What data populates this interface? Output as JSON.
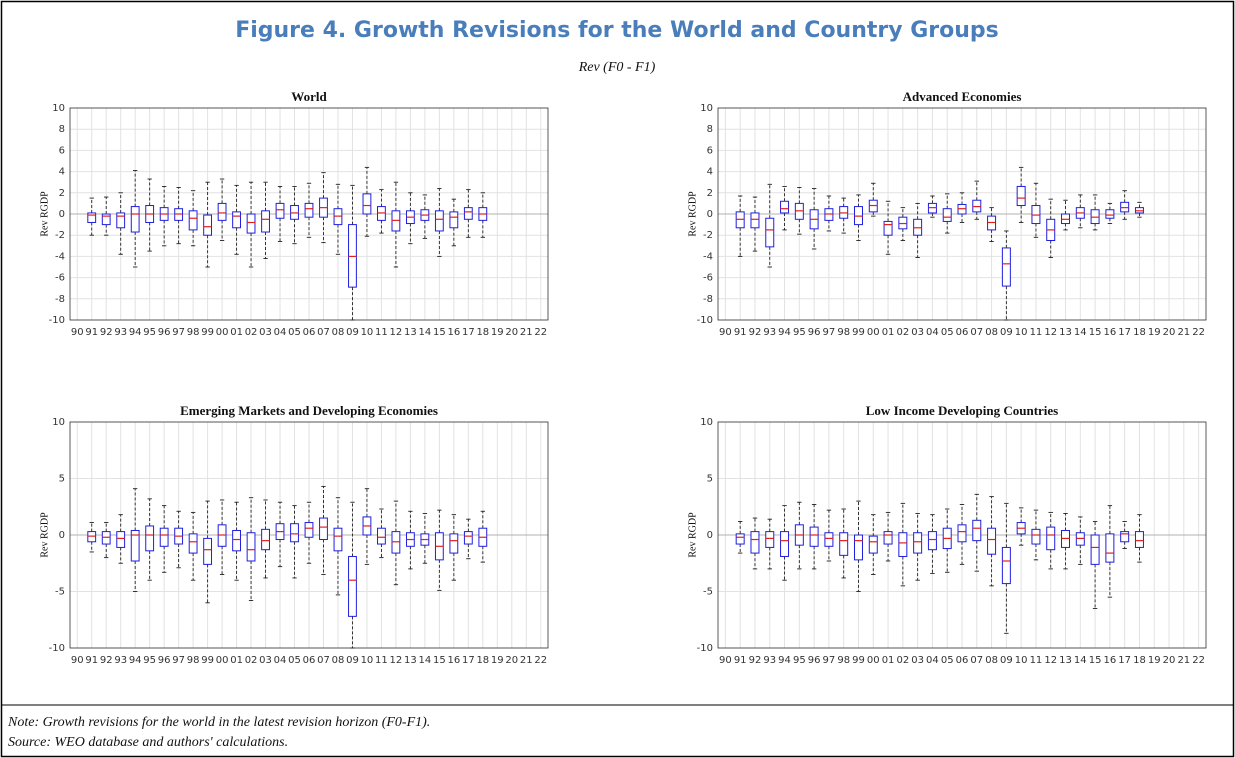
{
  "title": "Figure 4. Growth Revisions for the World and Country Groups",
  "annotation": "Rev (F0 - F1)",
  "note": "Note: Growth revisions for the world in the latest revision horizon (F0-F1).",
  "source": "Source: WEO database and authors' calculations.",
  "chart_data": [
    {
      "type": "box",
      "title": "World",
      "ylabel": "Rev RGDP",
      "categories": [
        "90",
        "91",
        "92",
        "93",
        "94",
        "95",
        "96",
        "97",
        "98",
        "99",
        "00",
        "01",
        "02",
        "03",
        "04",
        "05",
        "06",
        "07",
        "08",
        "09",
        "10",
        "11",
        "12",
        "13",
        "14",
        "15",
        "16",
        "17",
        "18",
        "19",
        "20",
        "21",
        "22"
      ],
      "min": [
        null,
        -2,
        -2,
        -3.8,
        -5,
        -3.5,
        -3,
        -2.8,
        -3,
        -5,
        -2.5,
        -3.8,
        -5,
        -4.2,
        -2.6,
        -2.8,
        -2.2,
        -2.7,
        -3.8,
        -10,
        -2.1,
        -1.8,
        -5,
        -2.8,
        -2.3,
        -4,
        -3,
        -2.2,
        -2.2,
        null,
        null,
        null,
        null
      ],
      "q1": [
        null,
        -0.8,
        -1,
        -1.3,
        -1.7,
        -0.8,
        -0.6,
        -0.6,
        -1.5,
        -2,
        -0.6,
        -1.3,
        -1.8,
        -1.7,
        -0.4,
        -0.5,
        -0.3,
        -0.3,
        -1,
        -6.9,
        0,
        -0.6,
        -1.6,
        -0.9,
        -0.6,
        -1.6,
        -1.3,
        -0.5,
        -0.6,
        null,
        null,
        null,
        null
      ],
      "median": [
        null,
        -0.1,
        -0.2,
        -0.2,
        0,
        0,
        0,
        0,
        -0.4,
        -1.2,
        0.1,
        -0.2,
        -0.8,
        -0.5,
        0.4,
        0.1,
        0.5,
        0.6,
        -0.2,
        -4,
        0.8,
        0.1,
        -0.6,
        -0.3,
        -0.1,
        -0.5,
        -0.3,
        0.2,
        0,
        null,
        null,
        null,
        null
      ],
      "q3": [
        null,
        0.1,
        0,
        0.1,
        0.7,
        0.8,
        0.6,
        0.5,
        0.3,
        -0.1,
        1,
        0.2,
        0,
        0.3,
        1,
        0.8,
        1,
        1.5,
        0.5,
        -1,
        1.9,
        0.7,
        0.3,
        0.3,
        0.4,
        0.3,
        0.2,
        0.6,
        0.6,
        null,
        null,
        null,
        null
      ],
      "max": [
        null,
        1.5,
        1.6,
        2,
        4.1,
        3.3,
        2.6,
        2.5,
        2.2,
        3,
        3.3,
        2.7,
        3,
        3,
        2.6,
        2.6,
        2.9,
        3.9,
        2.8,
        2.7,
        4.4,
        2.3,
        3,
        2,
        1.8,
        2.4,
        1.4,
        2.3,
        2,
        null,
        null,
        null,
        null
      ],
      "ylim": [
        -10,
        10
      ],
      "yticks": [
        -10,
        -8,
        -6,
        -4,
        -2,
        0,
        2,
        4,
        6,
        8,
        10
      ],
      "grid": true,
      "box_color": "#1f1fe0",
      "median_color": "#e0201f"
    },
    {
      "type": "box",
      "title": "Advanced Economies",
      "ylabel": "Rev RGDP",
      "categories": [
        "90",
        "91",
        "92",
        "93",
        "94",
        "95",
        "96",
        "97",
        "98",
        "99",
        "00",
        "01",
        "02",
        "03",
        "04",
        "05",
        "06",
        "07",
        "08",
        "09",
        "10",
        "11",
        "12",
        "13",
        "14",
        "15",
        "16",
        "17",
        "18",
        "19",
        "20",
        "21",
        "22"
      ],
      "min": [
        null,
        -4,
        -3.5,
        -5,
        -1.5,
        -1.9,
        -3.3,
        -1.6,
        -1.8,
        -2.5,
        -0.2,
        -3.8,
        -2.5,
        -4.1,
        -0.3,
        -1.8,
        -0.8,
        -0.5,
        -2.6,
        -10,
        -0.8,
        -2.2,
        -4.1,
        -1.5,
        -1.3,
        -1.5,
        -0.9,
        -0.5,
        -0.3,
        null,
        null,
        null,
        null
      ],
      "q1": [
        null,
        -1.3,
        -1.3,
        -3.1,
        0.1,
        -0.5,
        -1.4,
        -0.6,
        -0.4,
        -1,
        0.2,
        -2,
        -1.4,
        -2,
        0.1,
        -0.7,
        0,
        0.2,
        -1.5,
        -6.8,
        0.8,
        -0.9,
        -2.5,
        -0.9,
        -0.4,
        -0.9,
        -0.4,
        0.2,
        0.1,
        null,
        null,
        null,
        null
      ],
      "median": [
        null,
        -0.5,
        -0.5,
        -1.5,
        0.5,
        0.3,
        -0.5,
        0,
        0.1,
        -0.2,
        0.8,
        -1,
        -0.9,
        -1.3,
        0.6,
        -0.3,
        0.5,
        0.7,
        -0.8,
        -4.7,
        1.5,
        -0.1,
        -1.5,
        -0.5,
        0.1,
        -0.3,
        -0.1,
        0.6,
        0.3,
        null,
        null,
        null,
        null
      ],
      "q3": [
        null,
        0.2,
        0.1,
        -0.4,
        1.2,
        1,
        0.4,
        0.5,
        0.7,
        0.7,
        1.3,
        -0.7,
        -0.3,
        -0.5,
        1,
        0.5,
        0.9,
        1.3,
        -0.2,
        -3.2,
        2.6,
        0.8,
        -0.5,
        0,
        0.6,
        0.4,
        0.4,
        1.1,
        0.6,
        null,
        null,
        null,
        null
      ],
      "max": [
        null,
        1.7,
        1.6,
        2.8,
        2.6,
        2.5,
        2.4,
        1.7,
        1.5,
        1.8,
        2.9,
        1.2,
        0.6,
        1,
        1.7,
        1.9,
        2,
        3.1,
        0.6,
        -1.6,
        4.4,
        2.9,
        1.4,
        1.3,
        1.8,
        1.8,
        1,
        2.2,
        1.1,
        null,
        null,
        null,
        null
      ],
      "ylim": [
        -10,
        10
      ],
      "yticks": [
        -10,
        -8,
        -6,
        -4,
        -2,
        0,
        2,
        4,
        6,
        8,
        10
      ],
      "grid": true,
      "box_color": "#1f1fe0",
      "median_color": "#e0201f"
    },
    {
      "type": "box",
      "title": "Emerging Markets and Developing Economies",
      "ylabel": "Rev RGDP",
      "categories": [
        "90",
        "91",
        "92",
        "93",
        "94",
        "95",
        "96",
        "97",
        "98",
        "99",
        "00",
        "01",
        "02",
        "03",
        "04",
        "05",
        "06",
        "07",
        "08",
        "09",
        "10",
        "11",
        "12",
        "13",
        "14",
        "15",
        "16",
        "17",
        "18",
        "19",
        "20",
        "21",
        "22"
      ],
      "min": [
        null,
        -1.5,
        -2,
        -2.5,
        -5,
        -4,
        -3.3,
        -2.9,
        -4,
        -6,
        -3.5,
        -4,
        -5.8,
        -3.8,
        -2.8,
        -3.8,
        -2.5,
        -3.5,
        -5.3,
        -10,
        -2.6,
        -2,
        -4.4,
        -3,
        -2.5,
        -4.9,
        -4,
        -2.1,
        -2.4,
        null,
        null,
        null,
        null
      ],
      "q1": [
        null,
        -0.6,
        -0.8,
        -1.1,
        -2.3,
        -1.4,
        -1,
        -0.8,
        -1.6,
        -2.6,
        -1,
        -1.4,
        -2.3,
        -1.3,
        -0.4,
        -0.6,
        -0.2,
        -0.4,
        -1.4,
        -7.2,
        0,
        -0.8,
        -1.6,
        -1,
        -0.9,
        -2.2,
        -1.6,
        -0.8,
        -1,
        null,
        null,
        null,
        null
      ],
      "median": [
        null,
        -0.1,
        -0.2,
        -0.3,
        0,
        0,
        0,
        -0.1,
        -0.6,
        -1.3,
        0,
        -0.4,
        -1.3,
        -0.5,
        0.3,
        0.1,
        0.6,
        0.7,
        -0.1,
        -4,
        0.8,
        -0.2,
        -0.6,
        -0.4,
        -0.4,
        -1,
        -0.5,
        -0.1,
        -0.2,
        null,
        null,
        null,
        null
      ],
      "q3": [
        null,
        0.3,
        0.3,
        0.3,
        0.4,
        0.8,
        0.6,
        0.6,
        0.1,
        -0.3,
        0.9,
        0.4,
        0.2,
        0.5,
        1,
        1,
        1.1,
        1.5,
        0.6,
        -1.9,
        1.6,
        0.6,
        0.3,
        0.2,
        0.1,
        0.2,
        0.1,
        0.3,
        0.6,
        null,
        null,
        null,
        null
      ],
      "max": [
        null,
        1.1,
        1.1,
        1.8,
        4.1,
        3.2,
        2.6,
        2.1,
        2,
        3,
        3.1,
        2.9,
        3.3,
        3.1,
        2.9,
        2.6,
        2.9,
        4.3,
        3.3,
        2.9,
        4.1,
        2.3,
        3,
        2.1,
        1.9,
        2.2,
        1.8,
        1.4,
        2.1,
        null,
        null,
        null,
        null
      ],
      "ylim": [
        -10,
        10
      ],
      "yticks": [
        -10,
        -5,
        0,
        5,
        10
      ],
      "grid": true,
      "box_color": "#1f1fe0",
      "median_color": "#e0201f"
    },
    {
      "type": "box",
      "title": "Low Income Developing Countries",
      "ylabel": "Rev RGDP",
      "categories": [
        "90",
        "91",
        "92",
        "93",
        "94",
        "95",
        "96",
        "97",
        "98",
        "99",
        "00",
        "01",
        "02",
        "03",
        "04",
        "05",
        "06",
        "07",
        "08",
        "09",
        "10",
        "11",
        "12",
        "13",
        "14",
        "15",
        "16",
        "17",
        "18",
        "19",
        "20",
        "21",
        "22"
      ],
      "min": [
        null,
        -1.6,
        -3,
        -3,
        -4,
        -3,
        -3,
        -2.3,
        -3.8,
        -5,
        -3.5,
        -2.3,
        -4.5,
        -4,
        -3.4,
        -3.3,
        -2.6,
        -3.2,
        -4.5,
        -8.7,
        -0.9,
        -2.2,
        -3,
        -3,
        -2.6,
        -6.5,
        -5.5,
        -1.2,
        -2.4,
        null,
        null,
        null,
        null
      ],
      "q1": [
        null,
        -0.8,
        -1.6,
        -1.1,
        -1.9,
        -0.9,
        -1,
        -1,
        -1.8,
        -2.2,
        -1.6,
        -0.8,
        -1.9,
        -1.6,
        -1.3,
        -1.2,
        -0.6,
        -0.5,
        -1.7,
        -4.3,
        0.1,
        -0.8,
        -1.3,
        -1.1,
        -0.9,
        -2.6,
        -2.4,
        -0.6,
        -1.1,
        null,
        null,
        null,
        null
      ],
      "median": [
        null,
        -0.2,
        -0.4,
        -0.3,
        -0.5,
        0,
        0,
        -0.3,
        -0.5,
        -0.5,
        -0.6,
        0,
        -0.7,
        -0.6,
        -0.4,
        -0.3,
        0.3,
        0.6,
        -0.4,
        -2.3,
        0.6,
        0,
        0,
        -0.3,
        -0.3,
        -1.1,
        -1.6,
        0.1,
        -0.5,
        null,
        null,
        null,
        null
      ],
      "q3": [
        null,
        0.1,
        0.3,
        0.3,
        0.3,
        0.9,
        0.7,
        0.2,
        0.2,
        0,
        -0.1,
        0.3,
        0.2,
        0.2,
        0.3,
        0.6,
        0.9,
        1.3,
        0.6,
        -1.1,
        1.1,
        0.5,
        0.7,
        0.4,
        0.2,
        0,
        0.1,
        0.3,
        0.3,
        null,
        null,
        null,
        null
      ],
      "max": [
        null,
        1.2,
        1.5,
        1.4,
        2.6,
        2.9,
        2.7,
        2.2,
        2.3,
        3,
        1.8,
        2,
        2.8,
        1.9,
        1.8,
        2.3,
        2.7,
        3.6,
        3.4,
        2.8,
        2.4,
        2.2,
        2,
        1.9,
        1.6,
        1.2,
        2.6,
        1.2,
        1.8,
        null,
        null,
        null,
        null
      ],
      "ylim": [
        -10,
        10
      ],
      "yticks": [
        -10,
        -5,
        0,
        5,
        10
      ],
      "grid": true,
      "box_color": "#1f1fe0",
      "median_color": "#e0201f"
    }
  ]
}
